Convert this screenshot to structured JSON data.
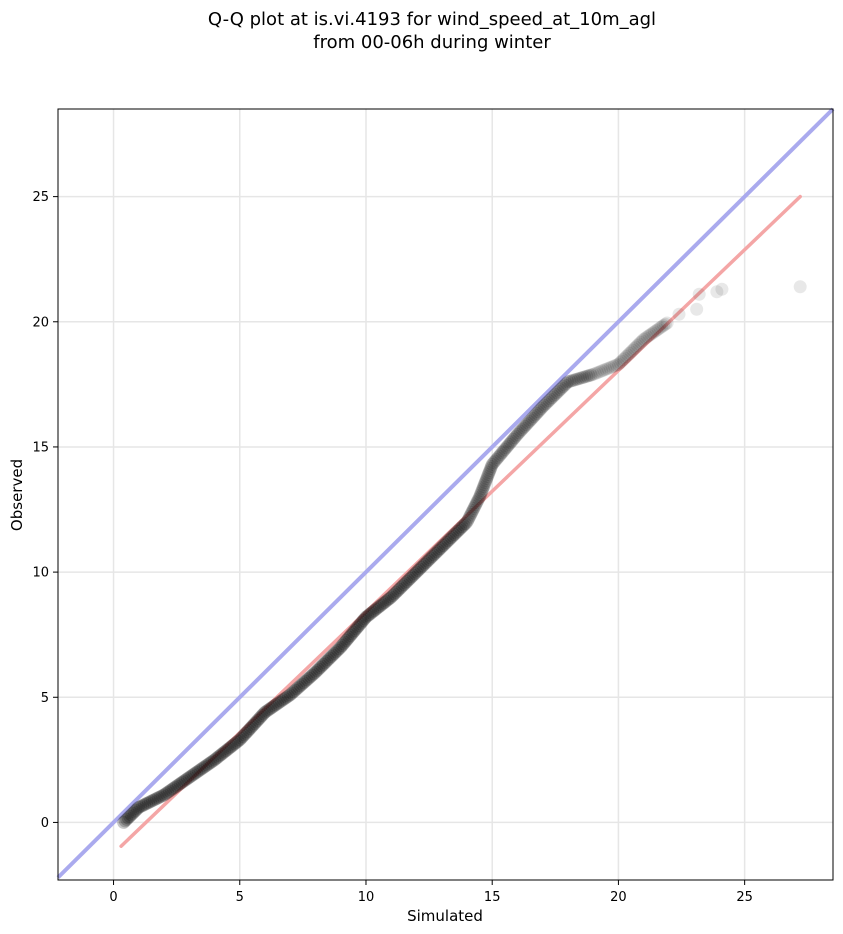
{
  "chart_data": {
    "type": "scatter",
    "title_lines": [
      "Q-Q plot at is.vi.4193 for wind_speed_at_10m_agl",
      "from 00-06h during winter"
    ],
    "xlabel": "Simulated",
    "ylabel": "Observed",
    "xlim": [
      -2.2,
      28.5
    ],
    "ylim": [
      -2.3,
      28.5
    ],
    "xticks": [
      0,
      5,
      10,
      15,
      20,
      25
    ],
    "yticks": [
      0,
      5,
      10,
      15,
      20,
      25
    ],
    "grid": true,
    "point_color": "#000000",
    "identity_line": {
      "color": "#aaaaee",
      "from": [
        -2.2,
        -2.2
      ],
      "to": [
        28.5,
        28.5
      ]
    },
    "fit_line": {
      "color": "#f4a6a6",
      "from": [
        0.3,
        -0.95
      ],
      "to": [
        27.2,
        25.0
      ]
    },
    "outliers": [
      [
        22.4,
        20.3
      ],
      [
        23.1,
        20.5
      ],
      [
        23.2,
        21.1
      ],
      [
        23.9,
        21.2
      ],
      [
        24.1,
        21.3
      ],
      [
        27.2,
        21.4
      ]
    ],
    "quantile_knots": [
      [
        0.4,
        0.0
      ],
      [
        1.0,
        0.6
      ],
      [
        2.0,
        1.1
      ],
      [
        3.0,
        1.8
      ],
      [
        4.0,
        2.5
      ],
      [
        5.0,
        3.3
      ],
      [
        6.0,
        4.4
      ],
      [
        7.0,
        5.1
      ],
      [
        8.0,
        6.0
      ],
      [
        9.0,
        7.0
      ],
      [
        10.0,
        8.2
      ],
      [
        11.0,
        9.0
      ],
      [
        12.0,
        10.0
      ],
      [
        13.0,
        11.0
      ],
      [
        14.0,
        12.0
      ],
      [
        14.5,
        13.0
      ],
      [
        15.0,
        14.3
      ],
      [
        16.0,
        15.5
      ],
      [
        17.0,
        16.6
      ],
      [
        18.0,
        17.6
      ],
      [
        19.0,
        17.9
      ],
      [
        20.0,
        18.3
      ],
      [
        20.5,
        18.8
      ],
      [
        21.0,
        19.3
      ],
      [
        22.0,
        20.0
      ]
    ]
  }
}
